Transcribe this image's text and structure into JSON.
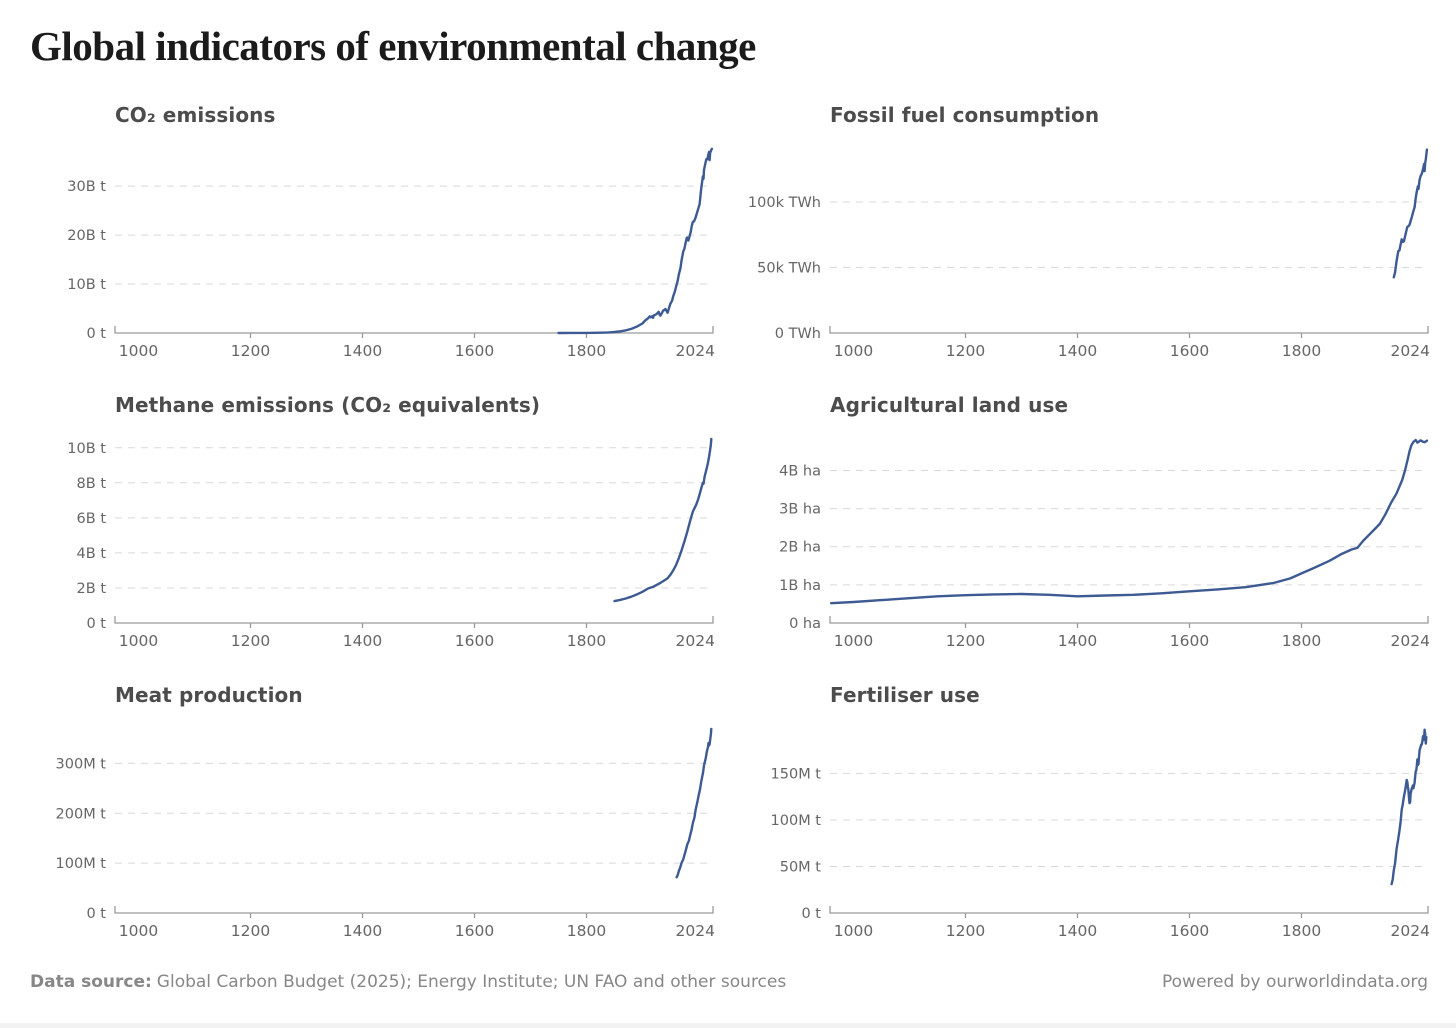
{
  "page": {
    "title": "Global indicators of environmental change"
  },
  "colors": {
    "line": "#3d5a92",
    "grid": "#d9d9d9",
    "axis": "#9a9a9a",
    "tick_text": "#666666",
    "chart_title_text": "#4c4c4c",
    "footer_text": "#878787"
  },
  "footer": {
    "datasource_label": "Data source:",
    "datasource_text": "Global Carbon Budget (2025); Energy Institute; UN FAO and other sources",
    "powered_by": "Powered by ourworldindata.org"
  },
  "chart_data": [
    {
      "type": "line",
      "title": "CO₂ emissions",
      "legend_position": "none",
      "grid": "dashed-horizontal",
      "xlim": [
        958,
        2026
      ],
      "ylim": [
        0,
        38.4
      ],
      "xticks": [
        1000,
        1200,
        1400,
        1600,
        1800,
        2024
      ],
      "yticks": [
        {
          "v": 0,
          "label": "0 t"
        },
        {
          "v": 10,
          "label": "10B t"
        },
        {
          "v": 20,
          "label": "20B t"
        },
        {
          "v": 30,
          "label": "30B t"
        }
      ],
      "unit": "billion tonnes",
      "series": [
        [
          1750,
          0.01
        ],
        [
          1775,
          0.02
        ],
        [
          1800,
          0.03
        ],
        [
          1825,
          0.06
        ],
        [
          1840,
          0.12
        ],
        [
          1850,
          0.2
        ],
        [
          1860,
          0.34
        ],
        [
          1870,
          0.53
        ],
        [
          1880,
          0.84
        ],
        [
          1890,
          1.3
        ],
        [
          1900,
          1.95
        ],
        [
          1905,
          2.55
        ],
        [
          1910,
          3.0
        ],
        [
          1913,
          3.4
        ],
        [
          1915,
          3.2
        ],
        [
          1918,
          3.45
        ],
        [
          1919,
          3.1
        ],
        [
          1920,
          3.55
        ],
        [
          1925,
          3.85
        ],
        [
          1929,
          4.3
        ],
        [
          1931,
          3.7
        ],
        [
          1932,
          3.55
        ],
        [
          1934,
          3.9
        ],
        [
          1937,
          4.6
        ],
        [
          1939,
          4.7
        ],
        [
          1941,
          4.9
        ],
        [
          1945,
          4.15
        ],
        [
          1948,
          5.3
        ],
        [
          1950,
          6.0
        ],
        [
          1953,
          6.6
        ],
        [
          1955,
          7.5
        ],
        [
          1958,
          8.5
        ],
        [
          1960,
          9.4
        ],
        [
          1963,
          10.7
        ],
        [
          1965,
          11.9
        ],
        [
          1968,
          13.3
        ],
        [
          1970,
          14.9
        ],
        [
          1973,
          16.7
        ],
        [
          1975,
          17.2
        ],
        [
          1977,
          18.4
        ],
        [
          1979,
          19.4
        ],
        [
          1980,
          19.5
        ],
        [
          1982,
          18.9
        ],
        [
          1984,
          19.7
        ],
        [
          1986,
          20.5
        ],
        [
          1988,
          21.8
        ],
        [
          1990,
          22.7
        ],
        [
          1992,
          22.8
        ],
        [
          1995,
          23.6
        ],
        [
          1997,
          24.4
        ],
        [
          2000,
          25.5
        ],
        [
          2002,
          26.3
        ],
        [
          2005,
          29.5
        ],
        [
          2007,
          31.3
        ],
        [
          2008,
          32.0
        ],
        [
          2009,
          31.5
        ],
        [
          2010,
          33.3
        ],
        [
          2012,
          34.5
        ],
        [
          2014,
          35.5
        ],
        [
          2016,
          35.5
        ],
        [
          2018,
          36.6
        ],
        [
          2019,
          37.0
        ],
        [
          2020,
          35.3
        ],
        [
          2021,
          36.9
        ],
        [
          2022,
          37.1
        ],
        [
          2023,
          37.4
        ],
        [
          2024,
          37.6
        ]
      ]
    },
    {
      "type": "line",
      "title": "Fossil fuel consumption",
      "legend_position": "none",
      "grid": "dashed-horizontal",
      "xlim": [
        958,
        2026
      ],
      "ylim": [
        0,
        143.5
      ],
      "xticks": [
        1000,
        1200,
        1400,
        1600,
        1800,
        2024
      ],
      "yticks": [
        {
          "v": 0,
          "label": "0 TWh"
        },
        {
          "v": 50,
          "label": "50k TWh"
        },
        {
          "v": 100,
          "label": "100k TWh"
        }
      ],
      "unit": "thousand TWh",
      "series": [
        [
          1965,
          42.5
        ],
        [
          1967,
          46
        ],
        [
          1970,
          55
        ],
        [
          1973,
          62.5
        ],
        [
          1975,
          63
        ],
        [
          1977,
          67.5
        ],
        [
          1979,
          71.5
        ],
        [
          1981,
          69.5
        ],
        [
          1983,
          70
        ],
        [
          1985,
          73.5
        ],
        [
          1987,
          77.5
        ],
        [
          1989,
          81
        ],
        [
          1991,
          81.5
        ],
        [
          1993,
          82.5
        ],
        [
          1995,
          85.5
        ],
        [
          1997,
          88.5
        ],
        [
          2000,
          93
        ],
        [
          2002,
          96
        ],
        [
          2004,
          103
        ],
        [
          2006,
          108
        ],
        [
          2008,
          112
        ],
        [
          2009,
          110
        ],
        [
          2011,
          117
        ],
        [
          2013,
          120
        ],
        [
          2015,
          121.5
        ],
        [
          2017,
          125
        ],
        [
          2019,
          129
        ],
        [
          2020,
          123.5
        ],
        [
          2021,
          130
        ],
        [
          2022,
          132.5
        ],
        [
          2023,
          136
        ],
        [
          2024,
          140
        ]
      ]
    },
    {
      "type": "line",
      "title": "Methane emissions (CO₂ equivalents)",
      "legend_position": "none",
      "grid": "dashed-horizontal",
      "xlim": [
        958,
        2026
      ],
      "ylim": [
        0,
        10.73
      ],
      "xticks": [
        1000,
        1200,
        1400,
        1600,
        1800,
        2024
      ],
      "yticks": [
        {
          "v": 0,
          "label": "0 t"
        },
        {
          "v": 2,
          "label": "2B t"
        },
        {
          "v": 4,
          "label": "4B t"
        },
        {
          "v": 6,
          "label": "6B t"
        },
        {
          "v": 8,
          "label": "8B t"
        },
        {
          "v": 10,
          "label": "10B t"
        }
      ],
      "unit": "billion tonnes CO₂eq",
      "series": [
        [
          1850,
          1.25
        ],
        [
          1860,
          1.32
        ],
        [
          1870,
          1.4
        ],
        [
          1880,
          1.5
        ],
        [
          1890,
          1.63
        ],
        [
          1900,
          1.78
        ],
        [
          1910,
          1.97
        ],
        [
          1920,
          2.08
        ],
        [
          1930,
          2.25
        ],
        [
          1940,
          2.45
        ],
        [
          1945,
          2.55
        ],
        [
          1950,
          2.75
        ],
        [
          1955,
          3.0
        ],
        [
          1960,
          3.3
        ],
        [
          1965,
          3.7
        ],
        [
          1970,
          4.15
        ],
        [
          1975,
          4.65
        ],
        [
          1980,
          5.2
        ],
        [
          1985,
          5.8
        ],
        [
          1990,
          6.35
        ],
        [
          1993,
          6.55
        ],
        [
          1996,
          6.75
        ],
        [
          2000,
          7.1
        ],
        [
          2003,
          7.45
        ],
        [
          2006,
          7.8
        ],
        [
          2008,
          8.0
        ],
        [
          2009,
          7.95
        ],
        [
          2011,
          8.35
        ],
        [
          2013,
          8.6
        ],
        [
          2015,
          8.85
        ],
        [
          2017,
          9.15
        ],
        [
          2019,
          9.5
        ],
        [
          2021,
          9.9
        ],
        [
          2022,
          10.15
        ],
        [
          2023,
          10.5
        ]
      ]
    },
    {
      "type": "line",
      "title": "Agricultural land use",
      "legend_position": "none",
      "grid": "dashed-horizontal",
      "xlim": [
        958,
        2026
      ],
      "ylim": [
        0,
        4.93
      ],
      "xticks": [
        1000,
        1200,
        1400,
        1600,
        1800,
        2024
      ],
      "yticks": [
        {
          "v": 0,
          "label": "0 ha"
        },
        {
          "v": 1,
          "label": "1B ha"
        },
        {
          "v": 2,
          "label": "2B ha"
        },
        {
          "v": 3,
          "label": "3B ha"
        },
        {
          "v": 4,
          "label": "4B ha"
        }
      ],
      "unit": "billion hectares",
      "series": [
        [
          960,
          0.52
        ],
        [
          1000,
          0.55
        ],
        [
          1050,
          0.6
        ],
        [
          1100,
          0.65
        ],
        [
          1150,
          0.7
        ],
        [
          1200,
          0.73
        ],
        [
          1250,
          0.75
        ],
        [
          1300,
          0.76
        ],
        [
          1350,
          0.74
        ],
        [
          1400,
          0.7
        ],
        [
          1450,
          0.72
        ],
        [
          1500,
          0.74
        ],
        [
          1550,
          0.78
        ],
        [
          1600,
          0.83
        ],
        [
          1650,
          0.88
        ],
        [
          1700,
          0.94
        ],
        [
          1750,
          1.05
        ],
        [
          1780,
          1.17
        ],
        [
          1800,
          1.3
        ],
        [
          1820,
          1.43
        ],
        [
          1850,
          1.63
        ],
        [
          1870,
          1.8
        ],
        [
          1890,
          1.93
        ],
        [
          1900,
          1.97
        ],
        [
          1910,
          2.15
        ],
        [
          1920,
          2.3
        ],
        [
          1930,
          2.45
        ],
        [
          1940,
          2.6
        ],
        [
          1950,
          2.85
        ],
        [
          1960,
          3.15
        ],
        [
          1970,
          3.4
        ],
        [
          1980,
          3.75
        ],
        [
          1985,
          4.0
        ],
        [
          1990,
          4.3
        ],
        [
          1993,
          4.5
        ],
        [
          1996,
          4.65
        ],
        [
          2000,
          4.75
        ],
        [
          2004,
          4.8
        ],
        [
          2007,
          4.73
        ],
        [
          2010,
          4.76
        ],
        [
          2013,
          4.79
        ],
        [
          2016,
          4.76
        ],
        [
          2020,
          4.74
        ],
        [
          2024,
          4.78
        ]
      ]
    },
    {
      "type": "line",
      "title": "Meat production",
      "legend_position": "none",
      "grid": "dashed-horizontal",
      "xlim": [
        958,
        2026
      ],
      "ylim": [
        0,
        377
      ],
      "xticks": [
        1000,
        1200,
        1400,
        1600,
        1800,
        2024
      ],
      "yticks": [
        {
          "v": 0,
          "label": "0 t"
        },
        {
          "v": 100,
          "label": "100M t"
        },
        {
          "v": 200,
          "label": "200M t"
        },
        {
          "v": 300,
          "label": "300M t"
        }
      ],
      "unit": "million tonnes",
      "series": [
        [
          1961,
          71.5
        ],
        [
          1963,
          76
        ],
        [
          1965,
          84
        ],
        [
          1967,
          90
        ],
        [
          1970,
          100.5
        ],
        [
          1973,
          108
        ],
        [
          1975,
          116
        ],
        [
          1978,
          128
        ],
        [
          1980,
          137
        ],
        [
          1983,
          145
        ],
        [
          1985,
          154.5
        ],
        [
          1988,
          168
        ],
        [
          1990,
          180
        ],
        [
          1993,
          192
        ],
        [
          1995,
          207
        ],
        [
          1998,
          222
        ],
        [
          2000,
          233.5
        ],
        [
          2003,
          249
        ],
        [
          2005,
          263
        ],
        [
          2008,
          280
        ],
        [
          2010,
          296
        ],
        [
          2013,
          310
        ],
        [
          2015,
          323
        ],
        [
          2017,
          333
        ],
        [
          2018,
          341
        ],
        [
          2019,
          336
        ],
        [
          2020,
          338
        ],
        [
          2021,
          348
        ],
        [
          2022,
          357
        ],
        [
          2023,
          369
        ]
      ]
    },
    {
      "type": "line",
      "title": "Fertiliser use",
      "legend_position": "none",
      "grid": "dashed-horizontal",
      "xlim": [
        958,
        2026
      ],
      "ylim": [
        0,
        202
      ],
      "xticks": [
        1000,
        1200,
        1400,
        1600,
        1800,
        2024
      ],
      "yticks": [
        {
          "v": 0,
          "label": "0 t"
        },
        {
          "v": 50,
          "label": "50M t"
        },
        {
          "v": 100,
          "label": "100M t"
        },
        {
          "v": 150,
          "label": "150M t"
        }
      ],
      "unit": "million tonnes",
      "series": [
        [
          1961,
          31
        ],
        [
          1963,
          36
        ],
        [
          1965,
          46
        ],
        [
          1967,
          53
        ],
        [
          1970,
          69
        ],
        [
          1973,
          80
        ],
        [
          1975,
          88
        ],
        [
          1977,
          98
        ],
        [
          1979,
          111
        ],
        [
          1981,
          117
        ],
        [
          1983,
          125
        ],
        [
          1985,
          131
        ],
        [
          1986,
          135
        ],
        [
          1988,
          143
        ],
        [
          1989,
          141
        ],
        [
          1990,
          136
        ],
        [
          1991,
          132
        ],
        [
          1992,
          124
        ],
        [
          1993,
          118
        ],
        [
          1994,
          119
        ],
        [
          1995,
          128
        ],
        [
          1996,
          131
        ],
        [
          1997,
          134
        ],
        [
          1998,
          135
        ],
        [
          1999,
          137
        ],
        [
          2000,
          134
        ],
        [
          2001,
          137
        ],
        [
          2002,
          140
        ],
        [
          2003,
          146
        ],
        [
          2004,
          152
        ],
        [
          2005,
          153
        ],
        [
          2006,
          158
        ],
        [
          2007,
          165
        ],
        [
          2008,
          159
        ],
        [
          2009,
          160
        ],
        [
          2010,
          168
        ],
        [
          2011,
          175
        ],
        [
          2012,
          177
        ],
        [
          2013,
          179
        ],
        [
          2014,
          181
        ],
        [
          2015,
          181
        ],
        [
          2016,
          185
        ],
        [
          2017,
          190
        ],
        [
          2018,
          186
        ],
        [
          2019,
          187
        ],
        [
          2020,
          197
        ],
        [
          2021,
          192
        ],
        [
          2022,
          182
        ],
        [
          2023,
          189
        ]
      ]
    }
  ]
}
